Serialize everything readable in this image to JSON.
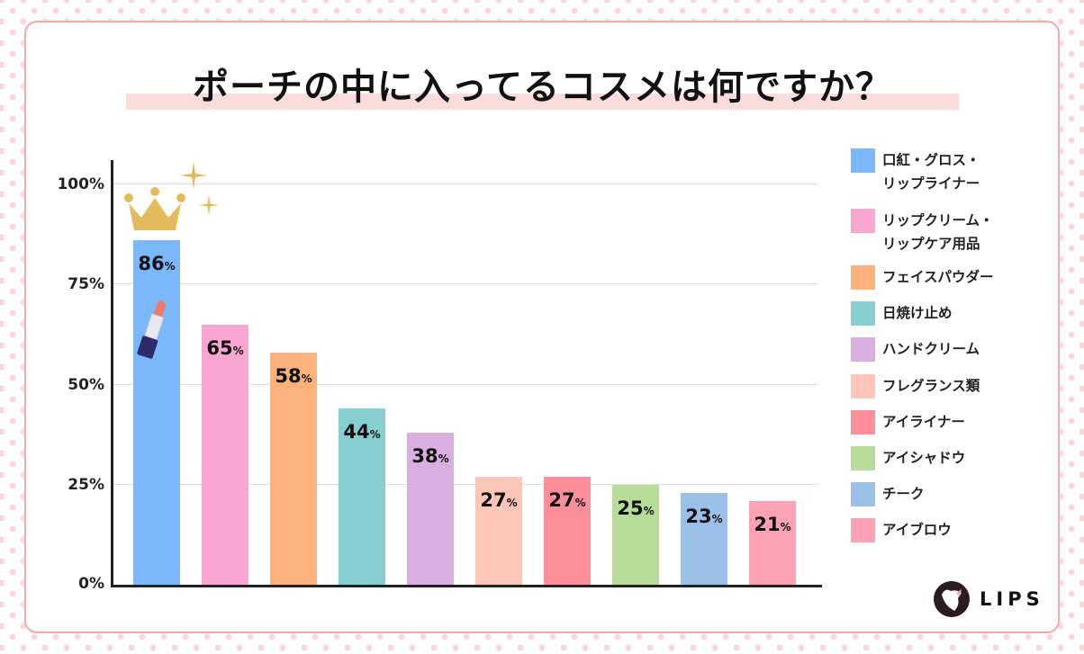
{
  "title": "ポーチの中に入ってるコスメは何ですか？",
  "y_ticks": [
    "100%",
    "75%",
    "50%",
    "25%",
    "0%"
  ],
  "bars": [
    {
      "value": "86",
      "unit": "%"
    },
    {
      "value": "65",
      "unit": "%"
    },
    {
      "value": "58",
      "unit": "%"
    },
    {
      "value": "44",
      "unit": "%"
    },
    {
      "value": "38",
      "unit": "%"
    },
    {
      "value": "27",
      "unit": "%"
    },
    {
      "value": "27",
      "unit": "%"
    },
    {
      "value": "25",
      "unit": "%"
    },
    {
      "value": "23",
      "unit": "%"
    },
    {
      "value": "21",
      "unit": "%"
    }
  ],
  "legend": [
    {
      "line1": "口紅・グロス・",
      "line2": "リップライナー",
      "color": "#7bb8fb"
    },
    {
      "line1": "リップクリーム・",
      "line2": "リップケア用品",
      "color": "#fba6d0"
    },
    {
      "line1": "フェイスパウダー",
      "line2": "",
      "color": "#fdb27c"
    },
    {
      "line1": "日焼け止め",
      "line2": "",
      "color": "#86cecf"
    },
    {
      "line1": "ハンドクリーム",
      "line2": "",
      "color": "#d9aee0"
    },
    {
      "line1": "フレグランス類",
      "line2": "",
      "color": "#fec6b8"
    },
    {
      "line1": "アイライナー",
      "line2": "",
      "color": "#fc8f9a"
    },
    {
      "line1": "アイシャドウ",
      "line2": "",
      "color": "#b7dc98"
    },
    {
      "line1": "チーク",
      "line2": "",
      "color": "#9bc0e8"
    },
    {
      "line1": "アイブロウ",
      "line2": "",
      "color": "#fca2b4"
    }
  ],
  "logo": {
    "text": "LIPS"
  },
  "chart_data": {
    "type": "bar",
    "title": "ポーチの中に入ってるコスメは何ですか？",
    "categories": [
      "口紅・グロス・リップライナー",
      "リップクリーム・リップケア用品",
      "フェイスパウダー",
      "日焼け止め",
      "ハンドクリーム",
      "フレグランス類",
      "アイライナー",
      "アイシャドウ",
      "チーク",
      "アイブロウ"
    ],
    "values": [
      86,
      65,
      58,
      44,
      38,
      27,
      27,
      25,
      23,
      21
    ],
    "colors": [
      "#7bb8fb",
      "#fba6d0",
      "#fdb27c",
      "#86cecf",
      "#d9aee0",
      "#fec6b8",
      "#fc8f9a",
      "#b7dc98",
      "#9bc0e8",
      "#fca2b4"
    ],
    "xlabel": "",
    "ylabel": "",
    "ylim": [
      0,
      100
    ],
    "yticks": [
      "0%",
      "25%",
      "50%",
      "75%",
      "100%"
    ],
    "grid": true,
    "legend_position": "right",
    "annotations": [
      "crown above first bar",
      "lipstick icon in first bar"
    ]
  }
}
